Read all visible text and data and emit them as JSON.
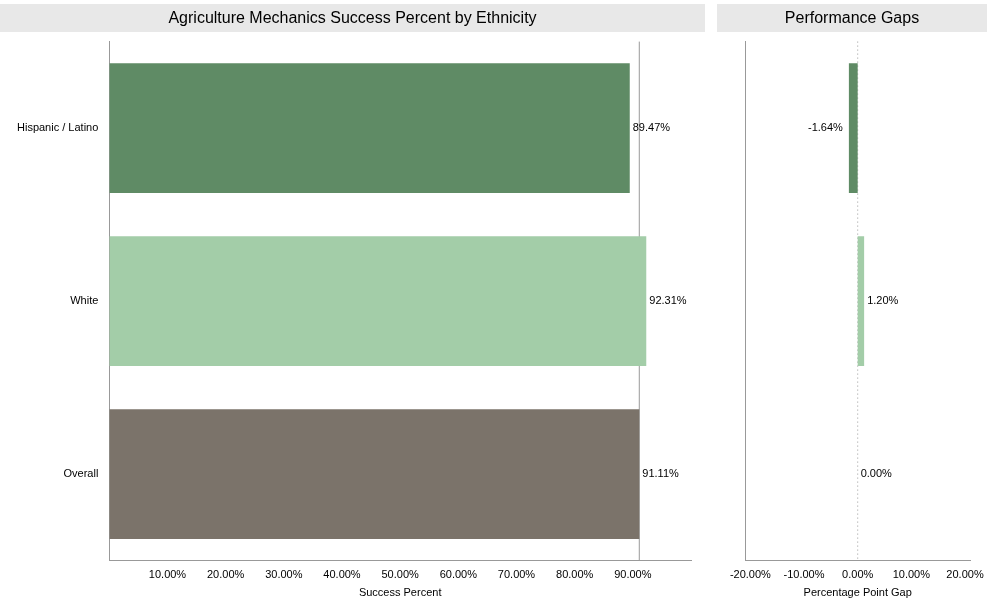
{
  "chart_data": [
    {
      "type": "bar",
      "orientation": "horizontal",
      "title": "Agriculture Mechanics Success Percent by Ethnicity",
      "xlabel": "Success Percent",
      "categories": [
        "Hispanic / Latino",
        "White",
        "Overall"
      ],
      "values": [
        89.47,
        92.31,
        91.11
      ],
      "colors": [
        "#5f8b65",
        "#a3cda8",
        "#7b736a"
      ],
      "value_labels": [
        "89.47%",
        "92.31%",
        "91.11%"
      ],
      "xlim": [
        0,
        100
      ],
      "xticks": [
        {
          "value": 10,
          "label": "10.00%"
        },
        {
          "value": 20,
          "label": "20.00%"
        },
        {
          "value": 30,
          "label": "30.00%"
        },
        {
          "value": 40,
          "label": "40.00%"
        },
        {
          "value": 50,
          "label": "50.00%"
        },
        {
          "value": 60,
          "label": "60.00%"
        },
        {
          "value": 70,
          "label": "70.00%"
        },
        {
          "value": 80,
          "label": "80.00%"
        },
        {
          "value": 90,
          "label": "90.00%"
        }
      ],
      "ref_lines": [
        {
          "axis": "x",
          "value": 91.11,
          "color": "#999999",
          "line_style": "solid"
        }
      ],
      "grid": false,
      "legend": false
    },
    {
      "type": "bar",
      "orientation": "horizontal",
      "title": "Performance Gaps",
      "xlabel": "Percentage Point Gap",
      "categories": [
        null,
        null,
        null
      ],
      "values": [
        -1.64,
        1.2,
        0
      ],
      "colors": [
        "#5f8b65",
        "#a3cda8",
        "#7b736a"
      ],
      "value_labels": [
        "-1.64%",
        "1.20%",
        "0.00%"
      ],
      "xlim": [
        -21,
        21
      ],
      "xticks": [
        {
          "value": -20,
          "label": "-20.00%"
        },
        {
          "value": -10,
          "label": "-10.00%"
        },
        {
          "value": 0,
          "label": "0.00%"
        },
        {
          "value": 10,
          "label": "10.00%"
        },
        {
          "value": 20,
          "label": "20.00%"
        }
      ],
      "ref_lines": [
        {
          "axis": "x",
          "value": 0,
          "color": "#999999",
          "line_style": "dotted"
        }
      ],
      "grid": false,
      "legend": false
    }
  ]
}
